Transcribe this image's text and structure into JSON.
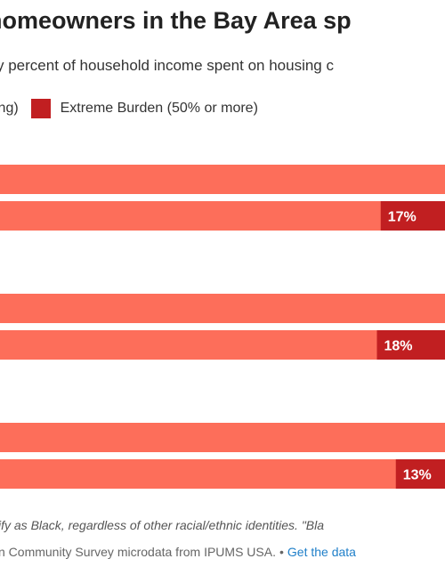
{
  "title": "homeowners in the Bay Area sp",
  "subtitle": "y percent of household income spent on housing c",
  "legend": {
    "partial_label": "ing)",
    "extreme_label": "Extreme Burden (50% or more)"
  },
  "colors": {
    "moderate": "#fd6e5a",
    "extreme": "#c11f21",
    "label_text": "#ffffff"
  },
  "chart_data": {
    "type": "bar",
    "orientation": "horizontal",
    "stacked": true,
    "groups": [
      {
        "bars": [
          {
            "segments": [
              {
                "series": "other",
                "visible_label": ""
              }
            ]
          },
          {
            "segments": [
              {
                "series": "other",
                "visible_label": ""
              },
              {
                "series": "extreme",
                "value": 17,
                "label": "17%"
              }
            ]
          }
        ]
      },
      {
        "bars": [
          {
            "segments": [
              {
                "series": "other",
                "visible_label": ""
              }
            ]
          },
          {
            "segments": [
              {
                "series": "other",
                "visible_label": ""
              },
              {
                "series": "extreme",
                "value": 18,
                "label": "18%"
              }
            ]
          }
        ]
      },
      {
        "bars": [
          {
            "segments": [
              {
                "series": "other",
                "visible_label": ""
              }
            ]
          },
          {
            "segments": [
              {
                "series": "other",
                "visible_label": ""
              },
              {
                "series": "extreme",
                "value": 13,
                "label": "13%"
              }
            ]
          }
        ]
      }
    ]
  },
  "footnote": "ify as Black, regardless of other racial/ethnic identities. \"Bla",
  "source": {
    "text": "n Community Survey microdata from IPUMS USA.",
    "separator": "•",
    "link_label": "Get the data"
  }
}
